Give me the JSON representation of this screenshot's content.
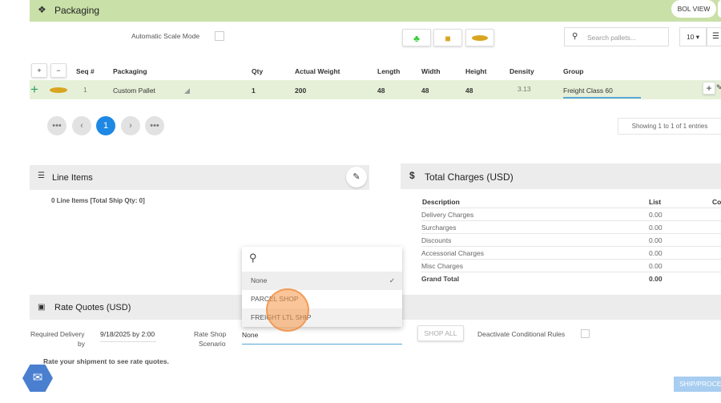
{
  "packaging": {
    "title": "Packaging",
    "bol_view": "BOL VIEW",
    "auto_scale_label": "Automatic Scale Mode",
    "search_placeholder": "Search pallets...",
    "page_size": "10 ▾",
    "columns": [
      "Seq #",
      "Packaging",
      "Qty",
      "Actual Weight",
      "Length",
      "Width",
      "Height",
      "Density",
      "Group"
    ],
    "row": {
      "seq": "1",
      "packaging": "Custom Pallet",
      "qty": "1",
      "weight": "200",
      "length": "48",
      "width": "48",
      "height": "48",
      "density": "3.13",
      "group": "Freight Class 60"
    },
    "pagination": {
      "first": "•••",
      "prev": "‹",
      "current": "1",
      "next": "›",
      "last": "•••"
    },
    "entries": "Showing 1 to 1 of 1 entries"
  },
  "line_items": {
    "title": "Line Items",
    "summary": "0 Line Items [Total Ship Qty: 0]"
  },
  "total_charges": {
    "title": "Total Charges (USD)",
    "headers": [
      "Description",
      "List",
      "Co"
    ],
    "rows": [
      {
        "d": "Delivery Charges",
        "v": "0.00"
      },
      {
        "d": "Surcharges",
        "v": "0.00"
      },
      {
        "d": "Discounts",
        "v": "0.00"
      },
      {
        "d": "Accessorial Charges",
        "v": "0.00"
      },
      {
        "d": "Misc Charges",
        "v": "0.00"
      },
      {
        "d": "Grand Total",
        "v": "0.00"
      }
    ]
  },
  "rate_quotes": {
    "title": "Rate Quotes (USD)",
    "req_label_1": "Required Delivery",
    "req_label_2": "by",
    "req_value": "9/18/2025 by 2:00",
    "scenario_label_1": "Rate Shop",
    "scenario_label_2": "Scenario",
    "scenario_value": "None",
    "shop_all": "SHOP ALL",
    "deactivate_label": "Deactivate Conditional Rules",
    "message": "Rate your shipment to see rate quotes.",
    "ship_button": "SHIP/PROCE"
  },
  "dropdown": {
    "options": [
      "None",
      "PARCEL SHOP",
      "FREIGHT LTL SHIP"
    ],
    "selected": "None"
  }
}
